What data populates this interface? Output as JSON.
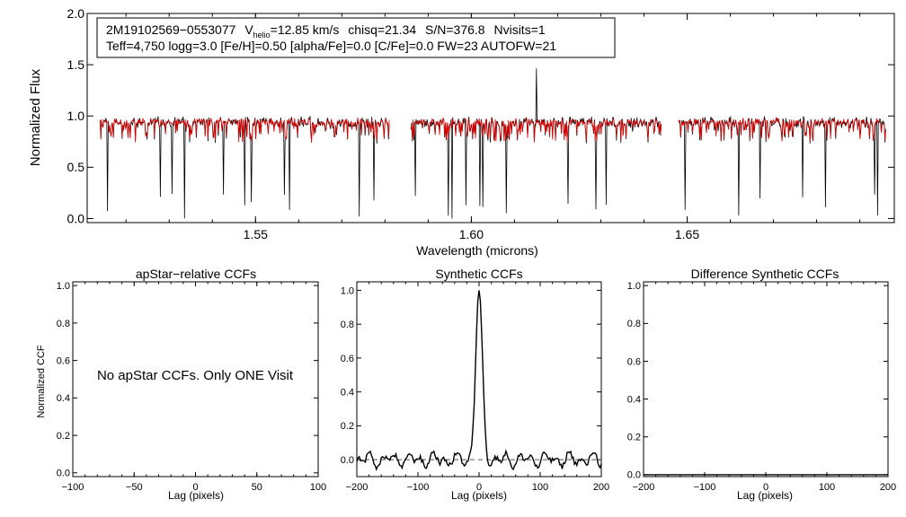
{
  "colors": {
    "observed": "#000000",
    "model": "#dd0000",
    "axis": "#000000",
    "background": "#ffffff"
  },
  "chart_data": [
    {
      "type": "line",
      "id": "spectrum",
      "ylabel": "Normalized Flux",
      "xlabel": "Wavelength (microns)",
      "xlim": [
        1.511,
        1.698
      ],
      "ylim": [
        -0.04,
        2.0
      ],
      "xticks": [
        1.55,
        1.6,
        1.65
      ],
      "xtick_labels": [
        "1.55",
        "1.60",
        "1.65"
      ],
      "yticks": [
        0.0,
        0.5,
        1.0,
        1.5,
        2.0
      ],
      "ytick_labels": [
        "0.0",
        "0.5",
        "1.0",
        "1.5",
        "2.0"
      ],
      "chip_ranges": [
        [
          1.514,
          1.581
        ],
        [
          1.586,
          1.644
        ],
        [
          1.648,
          1.696
        ]
      ],
      "series": [
        {
          "name": "observed apStar spectrum",
          "color": "#000000"
        },
        {
          "name": "best-fit synthetic spectrum",
          "color": "#dd0000"
        }
      ],
      "annotation": {
        "star_id": "2M19102569−0553077",
        "v_prefix": "V",
        "v_subscript": "helio",
        "v_value": "=12.85 km/s",
        "chisq": "chisq=21.34",
        "snr": "S/N=376.8",
        "nvisits": "Nvisits=1",
        "line2": "Teff=4,750 logg=3.0 [Fe/H]=0.50 [alpha/Fe]=0.0 [C/Fe]=0.0 FW=23 AUTOFW=21"
      }
    },
    {
      "type": "line",
      "id": "apstar",
      "title": "apStar−relative CCFs",
      "xlabel": "Lag (pixels)",
      "ylabel": "Normalized CCF",
      "xlim": [
        -100,
        100
      ],
      "ylim": [
        -0.02,
        1.02
      ],
      "xticks": [
        -100,
        -50,
        0,
        50,
        100
      ],
      "xtick_labels": [
        "−100",
        "−50",
        "0",
        "50",
        "100"
      ],
      "yticks": [
        0.0,
        0.2,
        0.4,
        0.6,
        0.8,
        1.0
      ],
      "ytick_labels": [
        "0.0",
        "0.2",
        "0.4",
        "0.6",
        "0.8",
        "1.0"
      ],
      "message": "No apStar CCFs.  Only ONE Visit",
      "series": []
    },
    {
      "type": "line",
      "id": "synthetic",
      "title": "Synthetic CCFs",
      "xlabel": "Lag (pixels)",
      "xlim": [
        -200,
        200
      ],
      "ylim": [
        -0.1,
        1.05
      ],
      "xticks": [
        -200,
        -100,
        0,
        100,
        200
      ],
      "xtick_labels": [
        "−200",
        "−100",
        "0",
        "100",
        "200"
      ],
      "yticks": [
        0.0,
        0.2,
        0.4,
        0.6,
        0.8,
        1.0
      ],
      "ytick_labels": [
        "0.0",
        "0.2",
        "0.4",
        "0.6",
        "0.8",
        "1.0"
      ],
      "baseline": 0.0,
      "series": [
        {
          "name": "synthetic CCF",
          "peak_lag": 0,
          "peak_value": 1.0,
          "noise_amplitude": 0.05
        }
      ]
    },
    {
      "type": "line",
      "id": "difference",
      "title": "Difference Synthetic CCFs",
      "xlabel": "Lag (pixels)",
      "xlim": [
        -200,
        200
      ],
      "ylim": [
        -0.01,
        1.02
      ],
      "xticks": [
        -200,
        -100,
        0,
        100,
        200
      ],
      "xtick_labels": [
        "−200",
        "−100",
        "0",
        "100",
        "200"
      ],
      "yticks": [
        0.0,
        0.2,
        0.4,
        0.6,
        0.8,
        1.0
      ],
      "ytick_labels": [
        "0.0",
        "0.2",
        "0.4",
        "0.6",
        "0.8",
        "1.0"
      ],
      "series": [
        {
          "name": "difference CCF",
          "values": "flat at 0.0"
        }
      ]
    }
  ]
}
